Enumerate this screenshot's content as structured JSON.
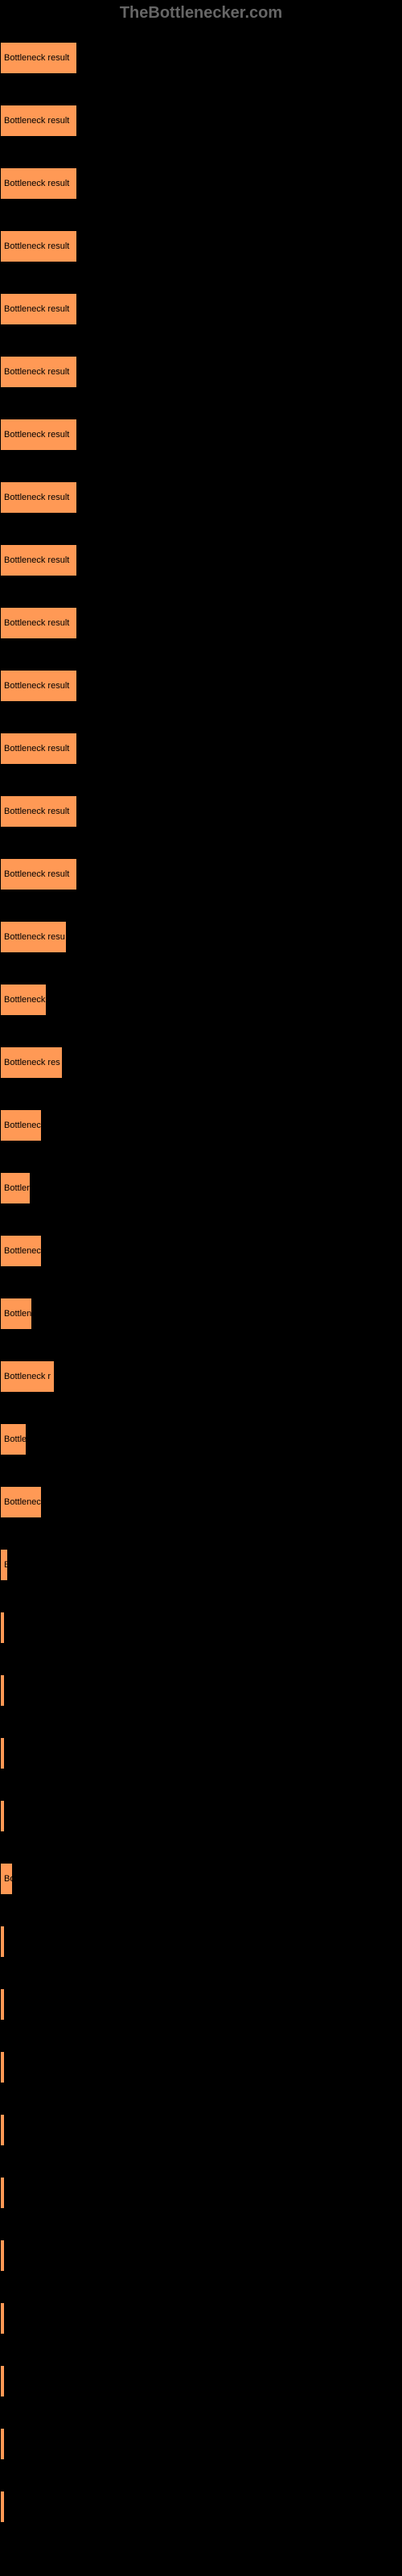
{
  "header": {
    "title": "TheBottlenecker.com"
  },
  "chart": {
    "type": "bar",
    "background_color": "#000000",
    "bar_color": "#ff9955",
    "text_color": "#000000",
    "label_fontsize": 11,
    "bars": [
      {
        "label": "Bottleneck result",
        "width": 96
      },
      {
        "label": "Bottleneck result",
        "width": 96
      },
      {
        "label": "Bottleneck result",
        "width": 96
      },
      {
        "label": "Bottleneck result",
        "width": 96
      },
      {
        "label": "Bottleneck result",
        "width": 96
      },
      {
        "label": "Bottleneck result",
        "width": 96
      },
      {
        "label": "Bottleneck result",
        "width": 96
      },
      {
        "label": "Bottleneck result",
        "width": 96
      },
      {
        "label": "Bottleneck result",
        "width": 96
      },
      {
        "label": "Bottleneck result",
        "width": 96
      },
      {
        "label": "Bottleneck result",
        "width": 96
      },
      {
        "label": "Bottleneck result",
        "width": 96
      },
      {
        "label": "Bottleneck result",
        "width": 96
      },
      {
        "label": "Bottleneck result",
        "width": 96
      },
      {
        "label": "Bottleneck resu",
        "width": 83
      },
      {
        "label": "Bottleneck",
        "width": 58
      },
      {
        "label": "Bottleneck res",
        "width": 78
      },
      {
        "label": "Bottlenec",
        "width": 52
      },
      {
        "label": "Bottler",
        "width": 38
      },
      {
        "label": "Bottlenec",
        "width": 52
      },
      {
        "label": "Bottlen",
        "width": 40
      },
      {
        "label": "Bottleneck r",
        "width": 68
      },
      {
        "label": "Bottle",
        "width": 33
      },
      {
        "label": "Bottlenec",
        "width": 52
      },
      {
        "label": "B",
        "width": 10
      },
      {
        "label": "",
        "width": 3
      },
      {
        "label": "",
        "width": 3
      },
      {
        "label": "",
        "width": 3
      },
      {
        "label": "",
        "width": 3
      },
      {
        "label": "Bo",
        "width": 16
      },
      {
        "label": "",
        "width": 3
      },
      {
        "label": "",
        "width": 3
      },
      {
        "label": "",
        "width": 3
      },
      {
        "label": "",
        "width": 3
      },
      {
        "label": "",
        "width": 3
      },
      {
        "label": "",
        "width": 3
      },
      {
        "label": "",
        "width": 3
      },
      {
        "label": "",
        "width": 3
      },
      {
        "label": "",
        "width": 3
      },
      {
        "label": "",
        "width": 3
      }
    ]
  }
}
